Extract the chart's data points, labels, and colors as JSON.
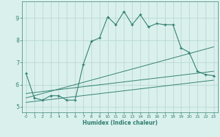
{
  "title": "",
  "xlabel": "Humidex (Indice chaleur)",
  "bg_color": "#daf0ec",
  "line_color": "#2d7d6e",
  "grid_color": "#b8d8d2",
  "xlim": [
    -0.5,
    23.5
  ],
  "ylim": [
    4.75,
    9.75
  ],
  "line1_x": [
    0,
    1,
    2,
    3,
    4,
    5,
    6,
    7,
    8,
    9,
    10,
    11,
    12,
    13,
    14,
    15,
    16,
    17,
    18,
    19,
    20,
    21,
    22,
    23
  ],
  "line1_y": [
    6.5,
    5.4,
    5.3,
    5.5,
    5.5,
    5.3,
    5.3,
    6.9,
    7.95,
    8.1,
    9.05,
    8.7,
    9.3,
    8.7,
    9.15,
    8.6,
    8.75,
    8.7,
    8.7,
    7.65,
    7.45,
    6.6,
    6.45,
    6.4
  ],
  "line2_x": [
    0,
    23
  ],
  "line2_y": [
    5.6,
    6.6
  ],
  "line3_x": [
    0,
    23
  ],
  "line3_y": [
    5.4,
    7.7
  ],
  "line4_x": [
    0,
    23
  ],
  "line4_y": [
    5.2,
    6.2
  ],
  "xticks": [
    0,
    1,
    2,
    3,
    4,
    5,
    6,
    7,
    8,
    9,
    10,
    11,
    12,
    13,
    14,
    15,
    16,
    17,
    18,
    19,
    20,
    21,
    22,
    23
  ],
  "yticks": [
    5,
    6,
    7,
    8,
    9
  ]
}
